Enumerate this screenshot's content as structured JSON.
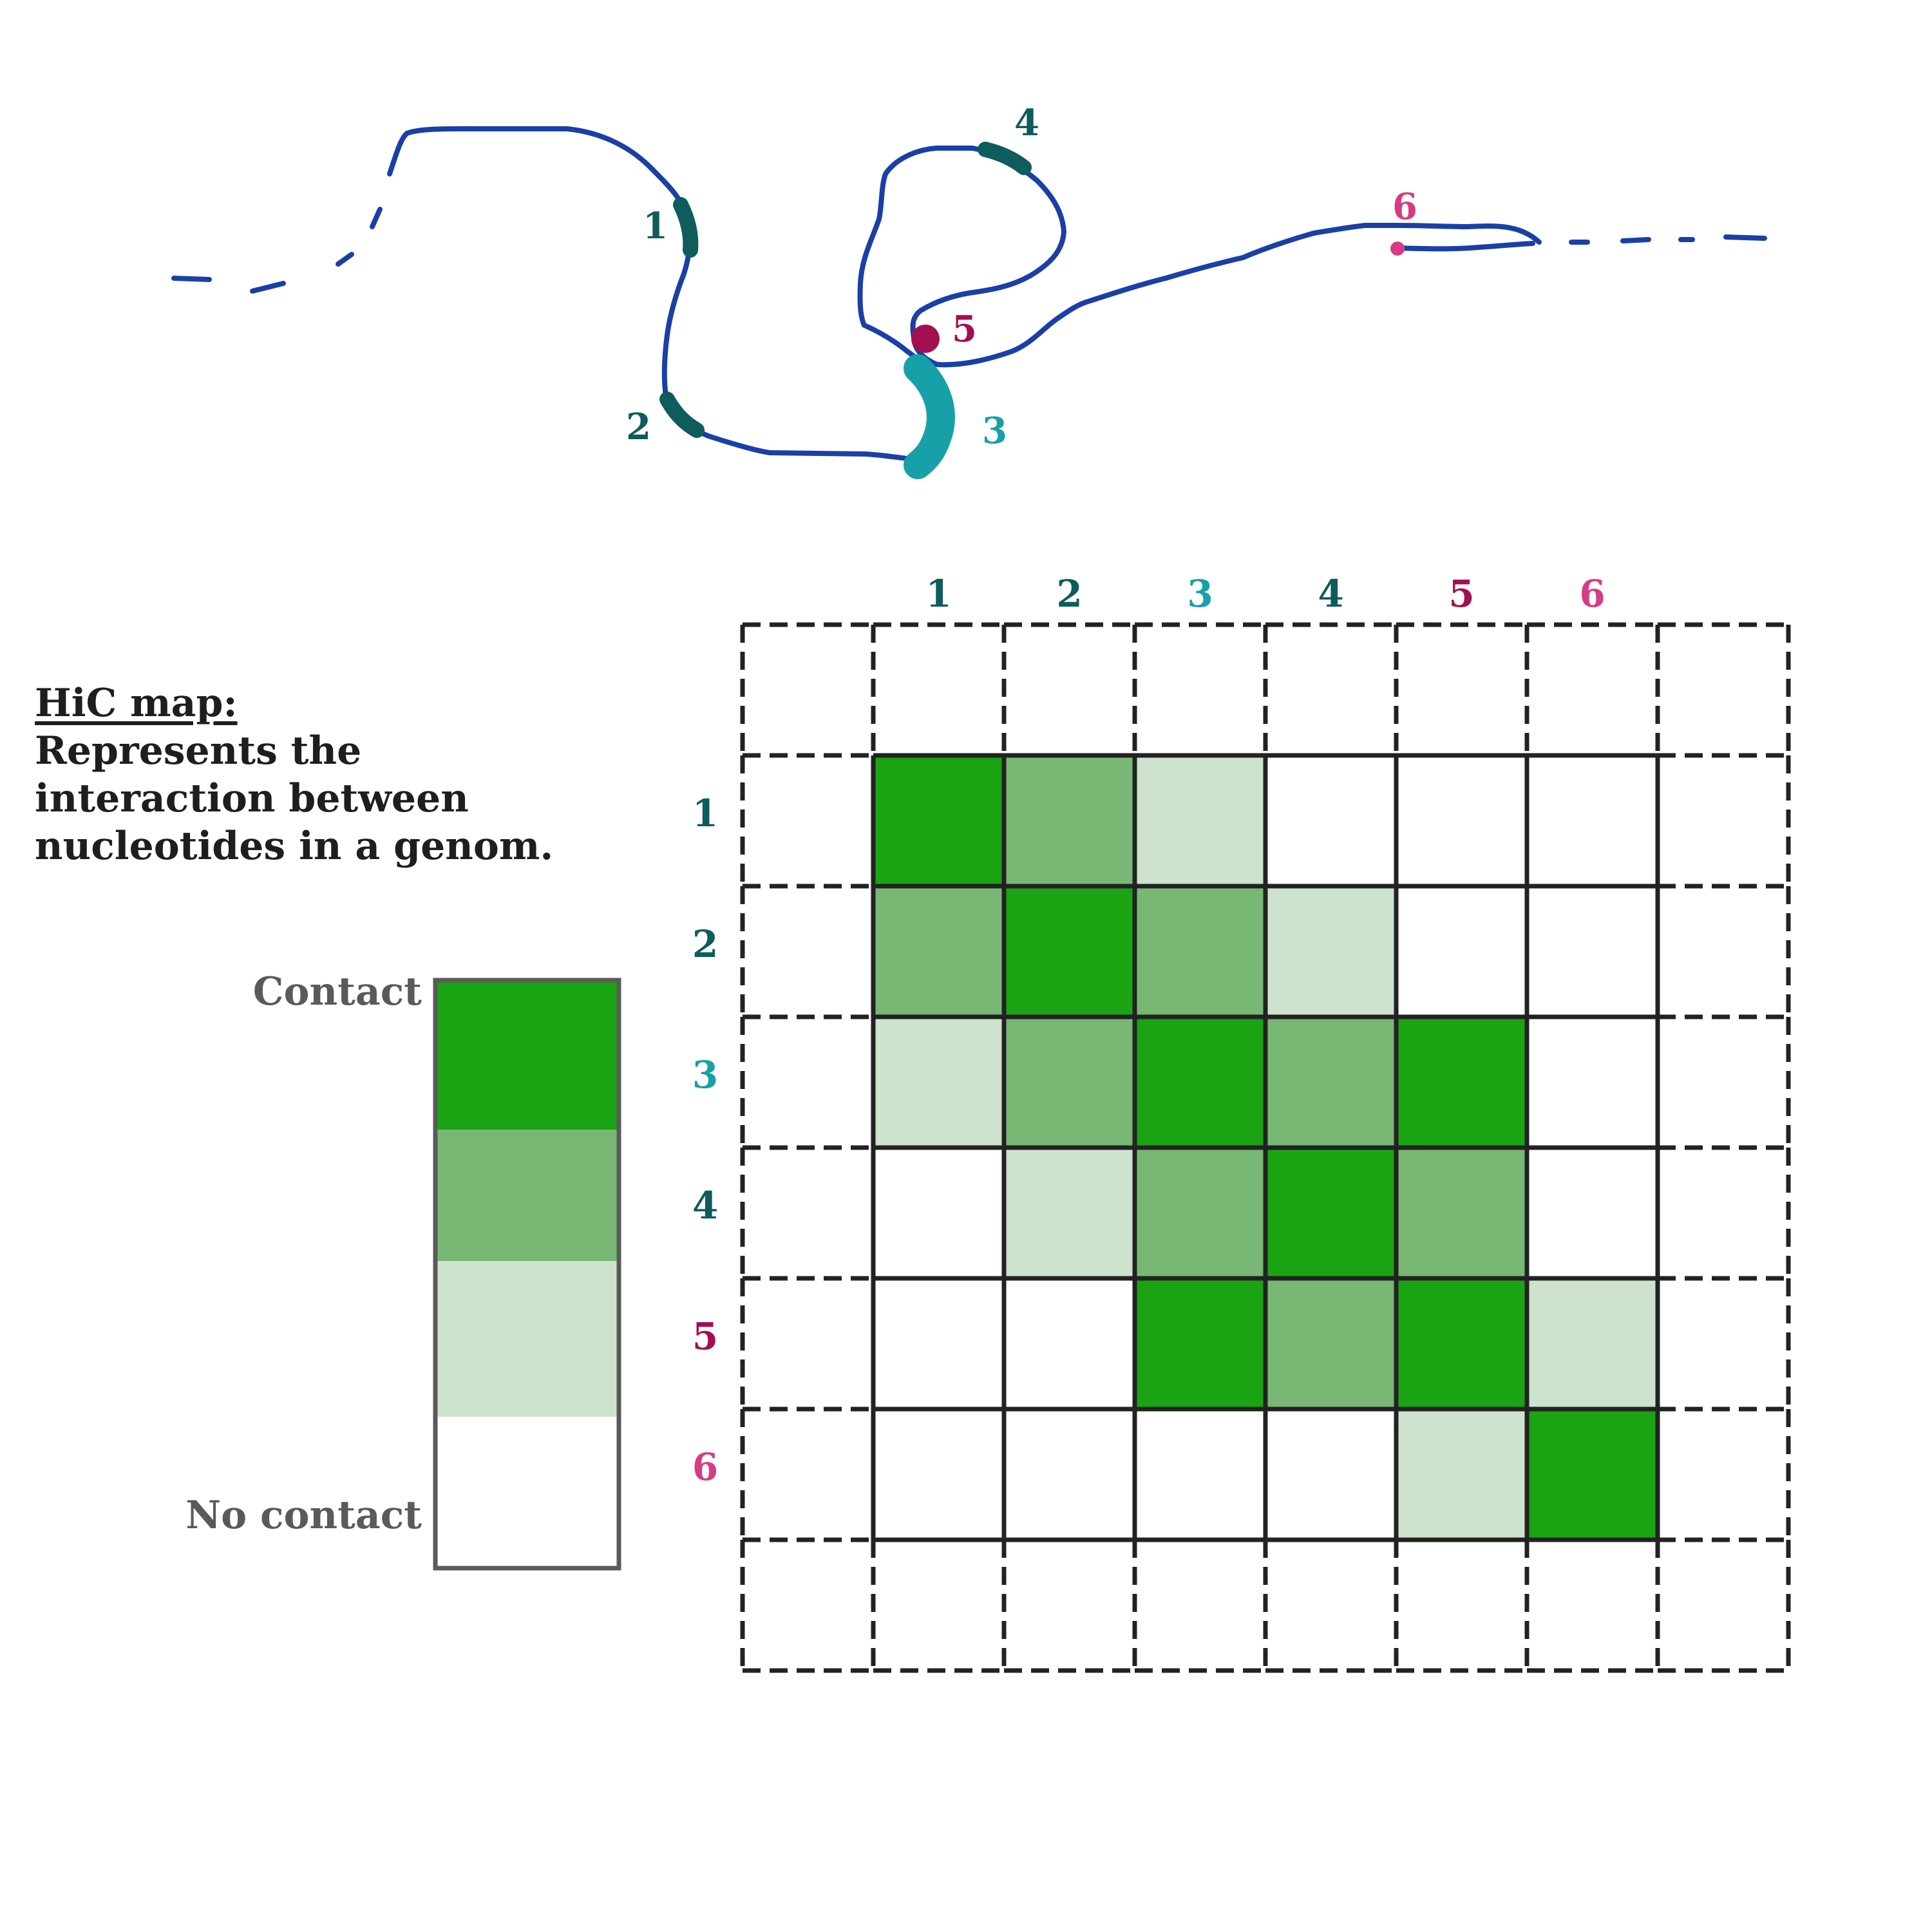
{
  "info": {
    "heading": "HiC map:",
    "lines": [
      "Represents the",
      "interaction between",
      "nucleotides in a genom."
    ]
  },
  "legend": {
    "top_label": "Contact",
    "bottom_label": "No contact",
    "levels": [
      {
        "level": 3,
        "color": "#1aa312"
      },
      {
        "level": 2,
        "color": "#78b874"
      },
      {
        "level": 1,
        "color": "#cde3cd"
      },
      {
        "level": 0,
        "color": "#ffffff"
      }
    ]
  },
  "loci": [
    {
      "id": "1",
      "label": "1",
      "color": "#0e5c5c"
    },
    {
      "id": "2",
      "label": "2",
      "color": "#0e5c5c"
    },
    {
      "id": "3",
      "label": "3",
      "color": "#18a0a8"
    },
    {
      "id": "4",
      "label": "4",
      "color": "#0e5c5c"
    },
    {
      "id": "5",
      "label": "5",
      "color": "#a3104f"
    },
    {
      "id": "6",
      "label": "6",
      "color": "#d63c85"
    }
  ],
  "colors": {
    "chromatin": "#1a3fa6",
    "grid": "#222222",
    "legend_border": "#5a5a5a"
  },
  "contact_matrix": [
    [
      3,
      2,
      1,
      0,
      0,
      0
    ],
    [
      2,
      3,
      2,
      1,
      0,
      0
    ],
    [
      1,
      2,
      3,
      2,
      3,
      0
    ],
    [
      0,
      1,
      2,
      3,
      2,
      0
    ],
    [
      0,
      0,
      3,
      2,
      3,
      1
    ],
    [
      0,
      0,
      0,
      0,
      1,
      3
    ]
  ]
}
